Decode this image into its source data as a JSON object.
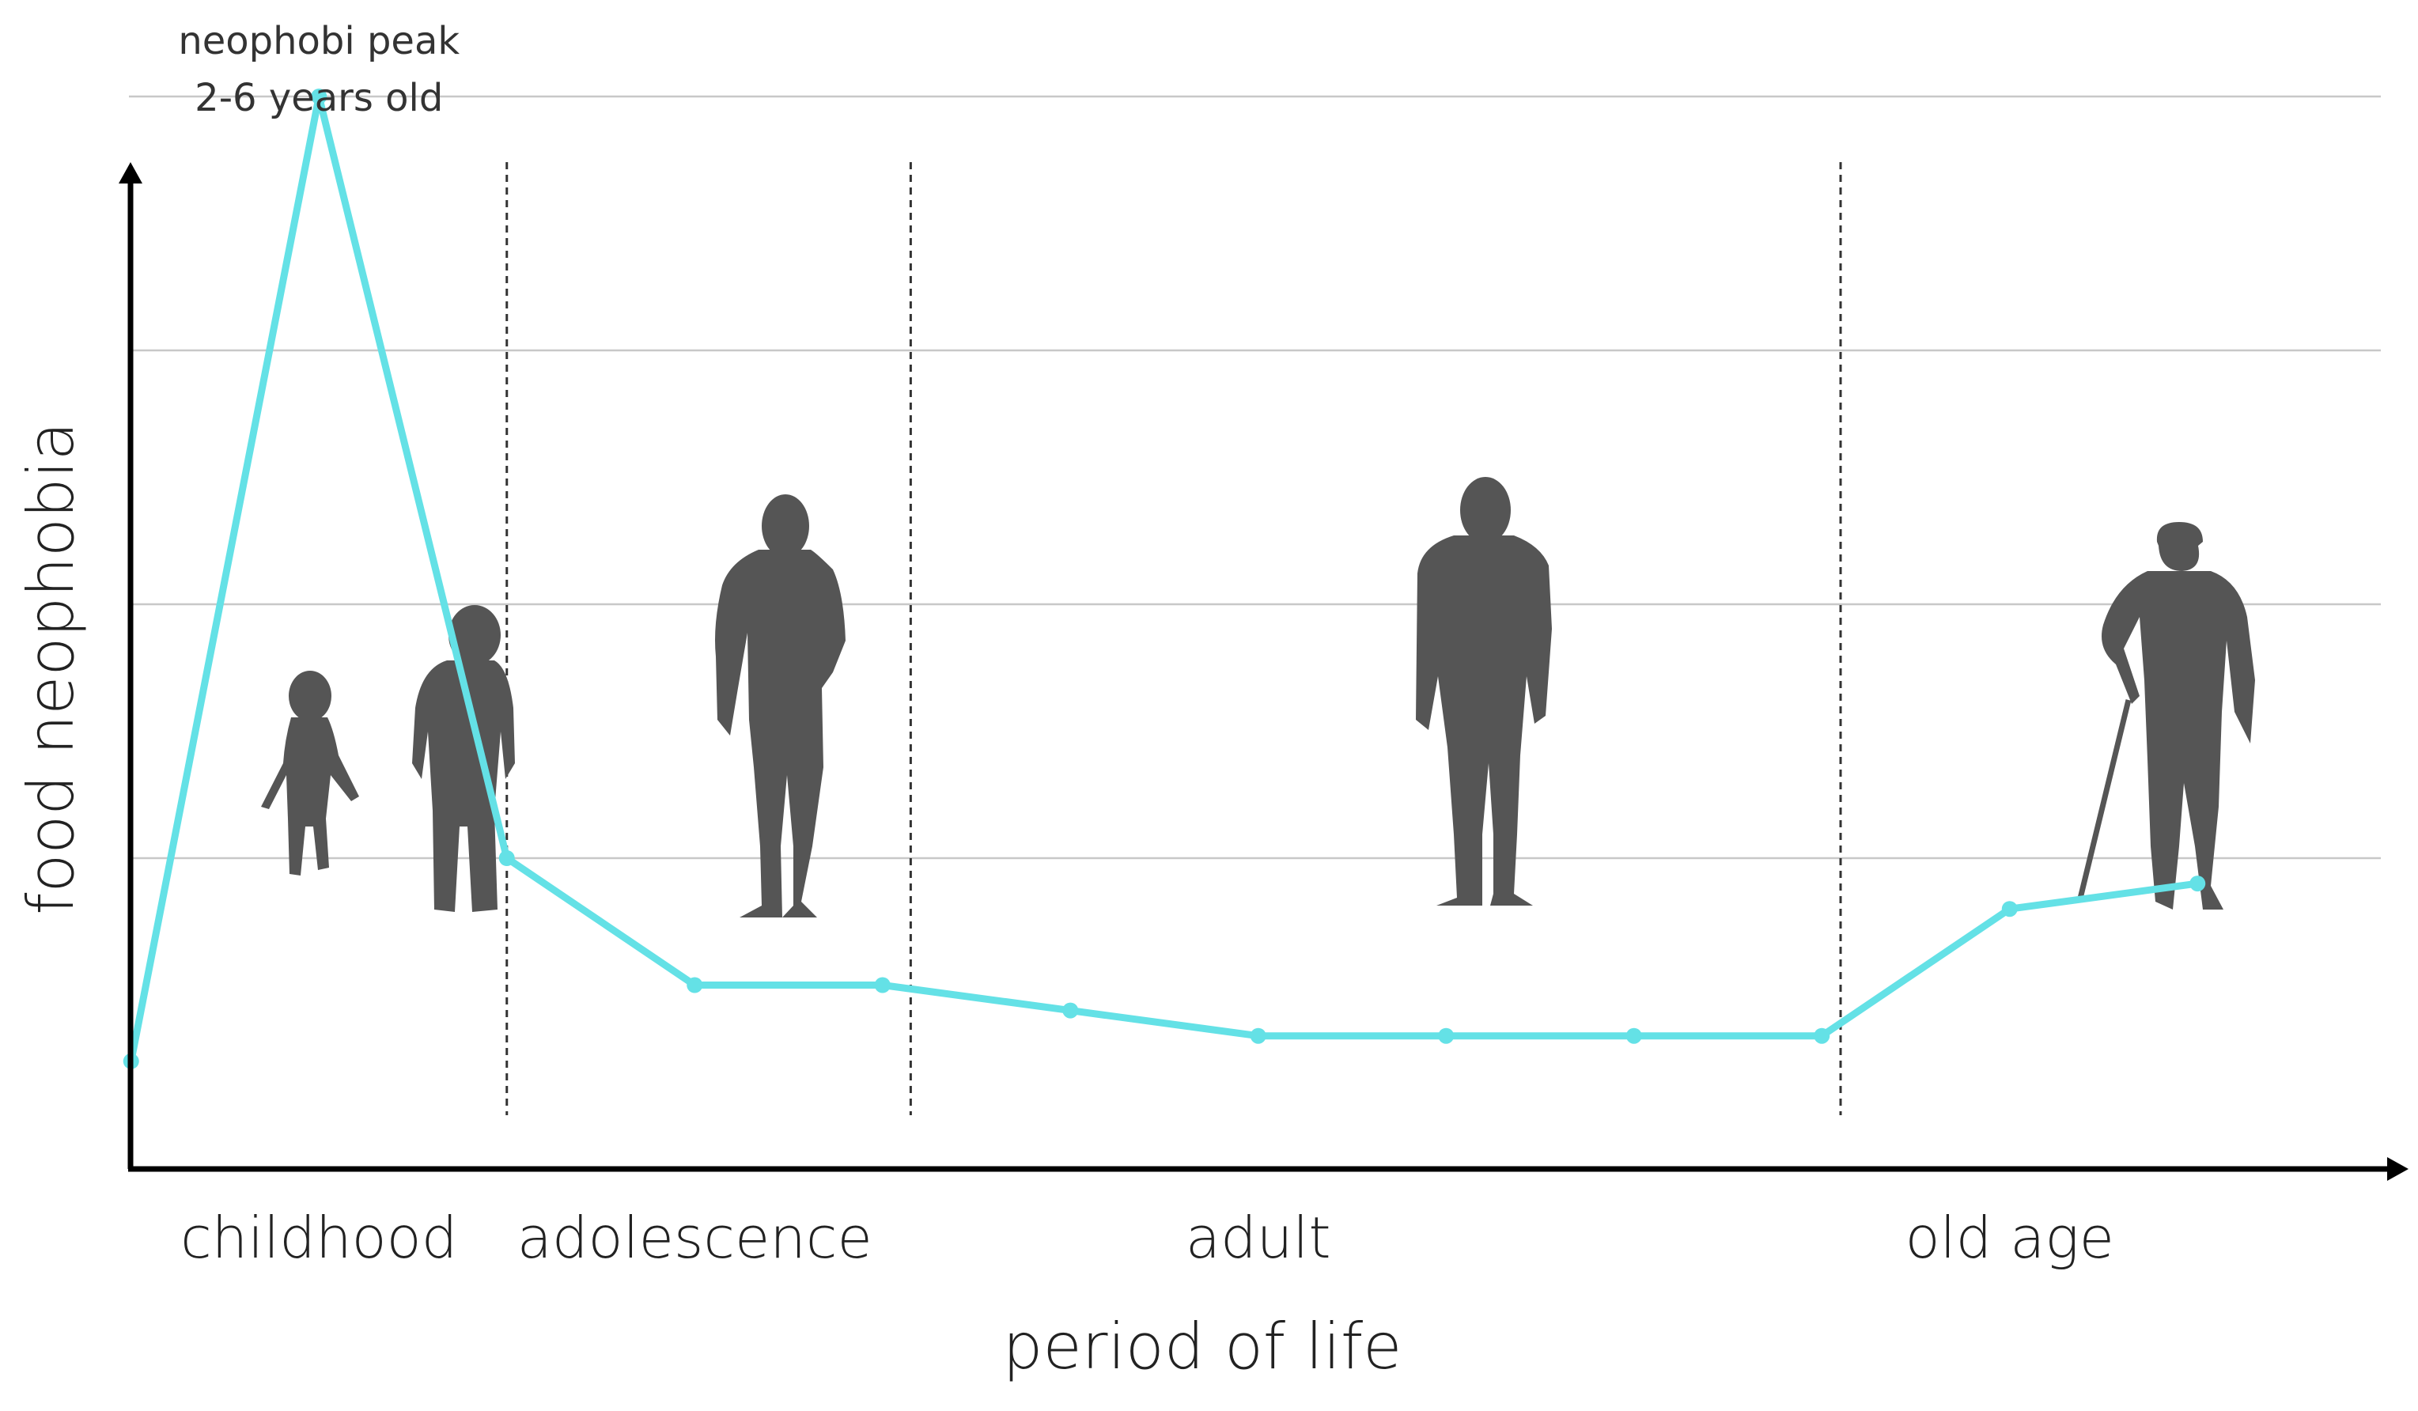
{
  "chart_data": {
    "type": "line",
    "title": "",
    "xlabel": "period of life",
    "ylabel": "food neophobia",
    "color": "#64e1e6",
    "grid": true,
    "ylim": [
      0,
      4
    ],
    "series": [
      {
        "name": "food neophobia",
        "points": [
          {
            "x": 0.5,
            "y": 0.2
          },
          {
            "x": 1.5,
            "y": 4.0
          },
          {
            "x": 2.5,
            "y": 1.0
          },
          {
            "x": 3.5,
            "y": 0.5
          },
          {
            "x": 4.5,
            "y": 0.5
          },
          {
            "x": 5.5,
            "y": 0.4
          },
          {
            "x": 6.5,
            "y": 0.3
          },
          {
            "x": 7.5,
            "y": 0.3
          },
          {
            "x": 8.5,
            "y": 0.3
          },
          {
            "x": 9.5,
            "y": 0.3
          },
          {
            "x": 10.5,
            "y": 0.8
          },
          {
            "x": 11.5,
            "y": 0.9
          }
        ]
      }
    ],
    "xlim": [
      0,
      12.1
    ],
    "period_boundaries": [
      2.5,
      4.65,
      9.6
    ],
    "categories": [
      {
        "label": "childhood",
        "x": 1.5
      },
      {
        "label": "adolescence",
        "x": 3.5
      },
      {
        "label": "adult",
        "x": 6.5
      },
      {
        "label": "old age",
        "x": 10.5
      }
    ],
    "annotation": {
      "line1": "neophobi peak",
      "line2": "2-6 years old",
      "x": 1.5
    }
  }
}
